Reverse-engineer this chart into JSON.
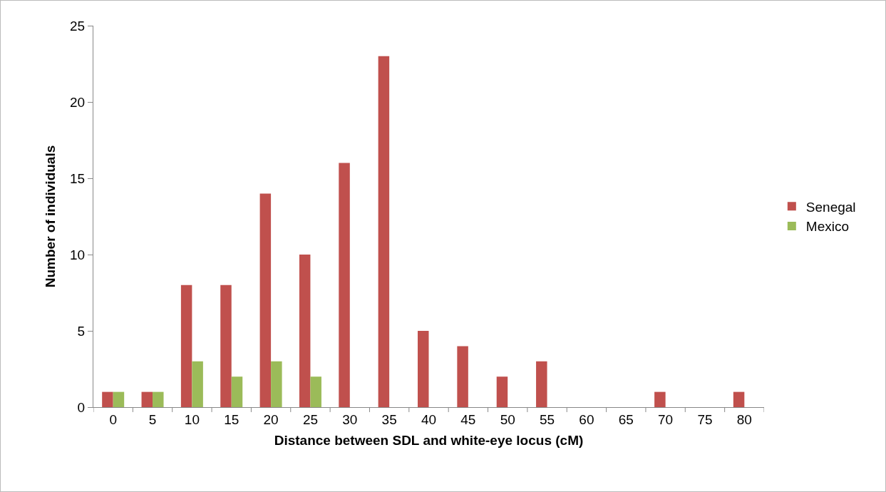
{
  "chart_data": {
    "type": "bar",
    "xlabel": "Distance between SDL and white-eye locus (cM)",
    "ylabel": "Number of individuals",
    "categories": [
      "0",
      "5",
      "10",
      "15",
      "20",
      "25",
      "30",
      "35",
      "40",
      "45",
      "50",
      "55",
      "60",
      "65",
      "70",
      "75",
      "80"
    ],
    "series": [
      {
        "name": "Senegal",
        "color": "#c0504d",
        "values": [
          1,
          1,
          8,
          8,
          14,
          10,
          16,
          23,
          5,
          4,
          2,
          3,
          0,
          0,
          1,
          0,
          1
        ]
      },
      {
        "name": "Mexico",
        "color": "#9bbb59",
        "values": [
          1,
          1,
          3,
          2,
          3,
          2,
          0,
          0,
          0,
          0,
          0,
          0,
          0,
          0,
          0,
          0,
          0
        ]
      }
    ],
    "ylim": [
      0,
      25
    ],
    "yticks": [
      0,
      5,
      10,
      15,
      20,
      25
    ],
    "grid": false,
    "legend": "right"
  }
}
